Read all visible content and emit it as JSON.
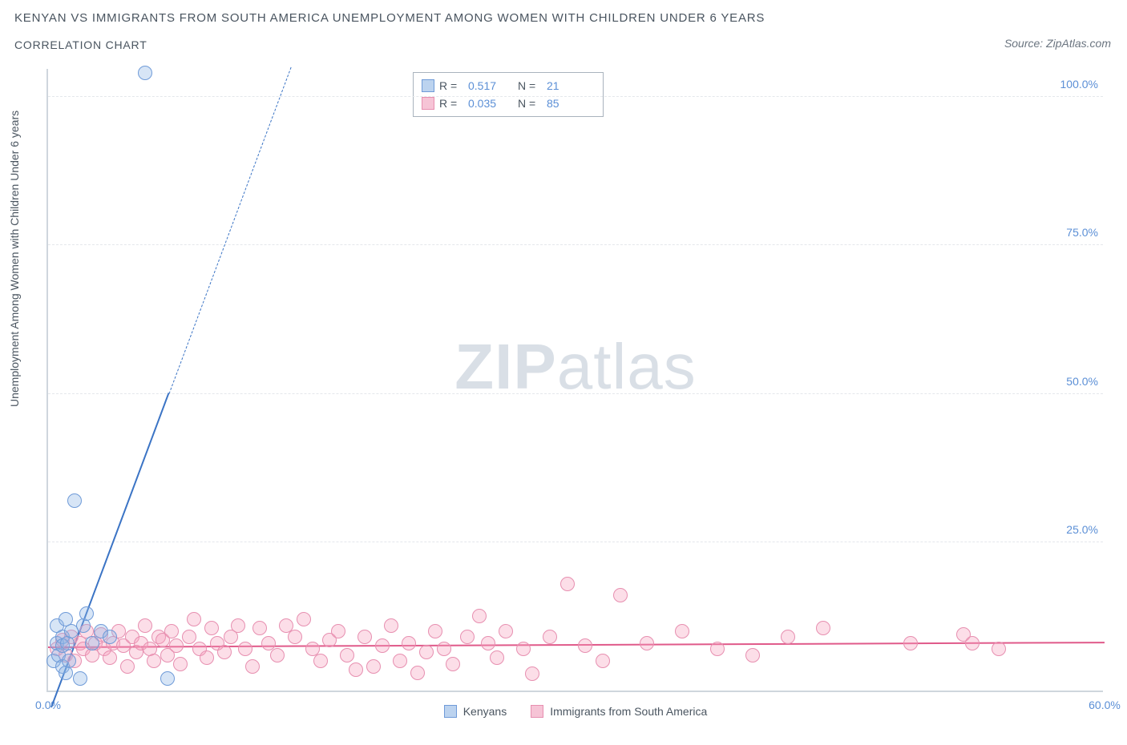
{
  "title": "KENYAN VS IMMIGRANTS FROM SOUTH AMERICA UNEMPLOYMENT AMONG WOMEN WITH CHILDREN UNDER 6 YEARS",
  "subtitle": "CORRELATION CHART",
  "source": "Source: ZipAtlas.com",
  "watermark": {
    "bold": "ZIP",
    "light": "atlas"
  },
  "yaxis_label": "Unemployment Among Women with Children Under 6 years",
  "xlim": [
    0,
    60
  ],
  "ylim": [
    0,
    105
  ],
  "xticks": [
    {
      "v": 0,
      "l": "0.0%"
    },
    {
      "v": 60,
      "l": "60.0%"
    }
  ],
  "yticks_right": [
    {
      "v": 25,
      "l": "25.0%"
    },
    {
      "v": 50,
      "l": "50.0%"
    },
    {
      "v": 75,
      "l": "75.0%"
    },
    {
      "v": 100,
      "l": "100.0%"
    }
  ],
  "grid_y": [
    25,
    50,
    75,
    100
  ],
  "colors": {
    "blue_fill": "rgba(140,180,230,0.35)",
    "blue_stroke": "#6f9bd8",
    "pink_fill": "rgba(245,160,190,0.35)",
    "pink_stroke": "#e78fb0",
    "blue_line": "#3b74c5",
    "pink_line": "#e05a8a",
    "swatch_blue_fill": "#bcd3ef",
    "swatch_blue_border": "#6f9bd8",
    "swatch_pink_fill": "#f6c4d6",
    "swatch_pink_border": "#e78fb0"
  },
  "marker_radius": 9,
  "legend_top": [
    {
      "series": "blue",
      "R_label": "R =",
      "R": "0.517",
      "N_label": "N =",
      "N": "21"
    },
    {
      "series": "pink",
      "R_label": "R =",
      "R": "0.035",
      "N_label": "N =",
      "N": "85"
    }
  ],
  "legend_bottom": [
    {
      "series": "blue",
      "label": "Kenyans"
    },
    {
      "series": "pink",
      "label": "Immigrants from South America"
    }
  ],
  "trend_lines": {
    "blue": {
      "x1": 0.2,
      "y1": -3,
      "x2": 13.8,
      "y2": 105,
      "solid_until_y": 50,
      "width": 2.5
    },
    "pink": {
      "x1": 0,
      "y1": 7.2,
      "x2": 60,
      "y2": 8.0,
      "width": 2.2
    }
  },
  "series": {
    "blue": [
      {
        "x": 0.3,
        "y": 5
      },
      {
        "x": 0.5,
        "y": 8
      },
      {
        "x": 0.5,
        "y": 11
      },
      {
        "x": 0.6,
        "y": 6
      },
      {
        "x": 0.8,
        "y": 9
      },
      {
        "x": 0.8,
        "y": 4
      },
      {
        "x": 0.8,
        "y": 7.5
      },
      {
        "x": 1.0,
        "y": 12
      },
      {
        "x": 1.1,
        "y": 8
      },
      {
        "x": 1.2,
        "y": 5
      },
      {
        "x": 1.3,
        "y": 10
      },
      {
        "x": 1.5,
        "y": 32
      },
      {
        "x": 1.8,
        "y": 2
      },
      {
        "x": 2.0,
        "y": 11
      },
      {
        "x": 2.2,
        "y": 13
      },
      {
        "x": 2.5,
        "y": 8
      },
      {
        "x": 3.0,
        "y": 10
      },
      {
        "x": 3.5,
        "y": 9
      },
      {
        "x": 5.5,
        "y": 104
      },
      {
        "x": 6.8,
        "y": 2
      },
      {
        "x": 1.0,
        "y": 3
      }
    ],
    "pink": [
      {
        "x": 0.5,
        "y": 7
      },
      {
        "x": 0.8,
        "y": 8.5
      },
      {
        "x": 1.0,
        "y": 6
      },
      {
        "x": 1.3,
        "y": 9
      },
      {
        "x": 1.5,
        "y": 5
      },
      {
        "x": 1.8,
        "y": 8
      },
      {
        "x": 2.0,
        "y": 7
      },
      {
        "x": 2.2,
        "y": 10
      },
      {
        "x": 2.5,
        "y": 6
      },
      {
        "x": 2.7,
        "y": 8
      },
      {
        "x": 3.0,
        "y": 9.5
      },
      {
        "x": 3.2,
        "y": 7
      },
      {
        "x": 3.5,
        "y": 5.5
      },
      {
        "x": 3.7,
        "y": 8
      },
      {
        "x": 4.0,
        "y": 10
      },
      {
        "x": 4.3,
        "y": 7.5
      },
      {
        "x": 4.5,
        "y": 4
      },
      {
        "x": 4.8,
        "y": 9
      },
      {
        "x": 5.0,
        "y": 6.5
      },
      {
        "x": 5.3,
        "y": 8
      },
      {
        "x": 5.5,
        "y": 11
      },
      {
        "x": 5.8,
        "y": 7
      },
      {
        "x": 6.0,
        "y": 5
      },
      {
        "x": 6.3,
        "y": 9
      },
      {
        "x": 6.5,
        "y": 8.5
      },
      {
        "x": 6.8,
        "y": 6
      },
      {
        "x": 7.0,
        "y": 10
      },
      {
        "x": 7.3,
        "y": 7.5
      },
      {
        "x": 7.5,
        "y": 4.5
      },
      {
        "x": 8.0,
        "y": 9
      },
      {
        "x": 8.3,
        "y": 12
      },
      {
        "x": 8.6,
        "y": 7
      },
      {
        "x": 9.0,
        "y": 5.5
      },
      {
        "x": 9.3,
        "y": 10.5
      },
      {
        "x": 9.6,
        "y": 8
      },
      {
        "x": 10.0,
        "y": 6.5
      },
      {
        "x": 10.4,
        "y": 9
      },
      {
        "x": 10.8,
        "y": 11
      },
      {
        "x": 11.2,
        "y": 7
      },
      {
        "x": 11.6,
        "y": 4
      },
      {
        "x": 12.0,
        "y": 10.5
      },
      {
        "x": 12.5,
        "y": 8
      },
      {
        "x": 13.0,
        "y": 6
      },
      {
        "x": 13.5,
        "y": 11
      },
      {
        "x": 14.0,
        "y": 9
      },
      {
        "x": 14.5,
        "y": 12
      },
      {
        "x": 15.0,
        "y": 7
      },
      {
        "x": 15.5,
        "y": 5
      },
      {
        "x": 16.0,
        "y": 8.5
      },
      {
        "x": 16.5,
        "y": 10
      },
      {
        "x": 17.0,
        "y": 6
      },
      {
        "x": 17.5,
        "y": 3.5
      },
      {
        "x": 18.0,
        "y": 9
      },
      {
        "x": 18.5,
        "y": 4
      },
      {
        "x": 19.0,
        "y": 7.5
      },
      {
        "x": 19.5,
        "y": 11
      },
      {
        "x": 20.0,
        "y": 5
      },
      {
        "x": 20.5,
        "y": 8
      },
      {
        "x": 21.0,
        "y": 3
      },
      {
        "x": 21.5,
        "y": 6.5
      },
      {
        "x": 22.0,
        "y": 10
      },
      {
        "x": 22.5,
        "y": 7
      },
      {
        "x": 23.0,
        "y": 4.5
      },
      {
        "x": 23.8,
        "y": 9
      },
      {
        "x": 24.5,
        "y": 12.5
      },
      {
        "x": 25.0,
        "y": 8
      },
      {
        "x": 25.5,
        "y": 5.5
      },
      {
        "x": 26.0,
        "y": 10
      },
      {
        "x": 27.0,
        "y": 7
      },
      {
        "x": 27.5,
        "y": 2.8
      },
      {
        "x": 28.5,
        "y": 9
      },
      {
        "x": 29.5,
        "y": 18
      },
      {
        "x": 30.5,
        "y": 7.5
      },
      {
        "x": 31.5,
        "y": 5
      },
      {
        "x": 32.5,
        "y": 16
      },
      {
        "x": 34.0,
        "y": 8
      },
      {
        "x": 36.0,
        "y": 10
      },
      {
        "x": 38.0,
        "y": 7
      },
      {
        "x": 40.0,
        "y": 6
      },
      {
        "x": 42.0,
        "y": 9
      },
      {
        "x": 44.0,
        "y": 10.5
      },
      {
        "x": 49.0,
        "y": 8
      },
      {
        "x": 52.0,
        "y": 9.5
      },
      {
        "x": 52.5,
        "y": 8
      },
      {
        "x": 54.0,
        "y": 7
      }
    ]
  }
}
